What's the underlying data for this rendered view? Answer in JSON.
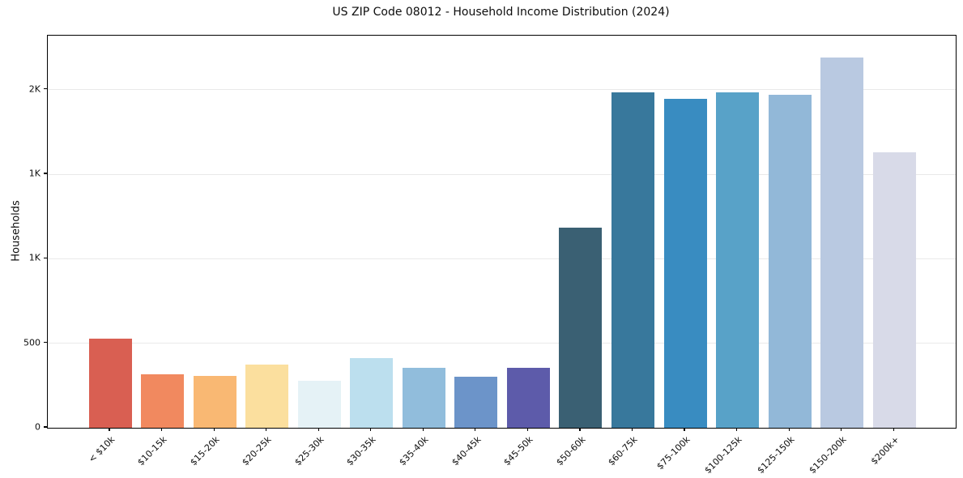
{
  "chart_data": {
    "type": "bar",
    "title": "US ZIP Code 08012 - Household Income Distribution (2024)",
    "xlabel": "",
    "ylabel": "Households",
    "categories": [
      "< $10k",
      "$10-15k",
      "$15-20k",
      "$20-25k",
      "$25-30k",
      "$30-35k",
      "$35-40k",
      "$40-45k",
      "$45-50k",
      "$50-60k",
      "$60-75k",
      "$75-100k",
      "$100-125k",
      "$125-150k",
      "$150-200k",
      "$200k+"
    ],
    "values": [
      525,
      315,
      305,
      375,
      280,
      410,
      355,
      300,
      355,
      1185,
      1985,
      1945,
      1985,
      1970,
      2190,
      1630
    ],
    "bar_colors": [
      "#d95f52",
      "#f1895f",
      "#f9b873",
      "#fbdf9e",
      "#e5f2f6",
      "#bcdfee",
      "#91bddc",
      "#6c94c9",
      "#5d5baa",
      "#3a6073",
      "#38789c",
      "#398cc1",
      "#58a2c8",
      "#92b8d8",
      "#b9c9e1",
      "#d8dae8"
    ],
    "ylim": [
      0,
      2320
    ],
    "yticks": [
      {
        "value": 0,
        "label": "0"
      },
      {
        "value": 500,
        "label": "500"
      },
      {
        "value": 1000,
        "label": "1K"
      },
      {
        "value": 1500,
        "label": "1K"
      },
      {
        "value": 2000,
        "label": "2K"
      }
    ],
    "grid": "horizontal-only",
    "grid_color": "#e9e9e9",
    "spine_color": "#000000",
    "background_color": "#ffffff",
    "text_color": "#0d0d0d",
    "legend": "none"
  }
}
